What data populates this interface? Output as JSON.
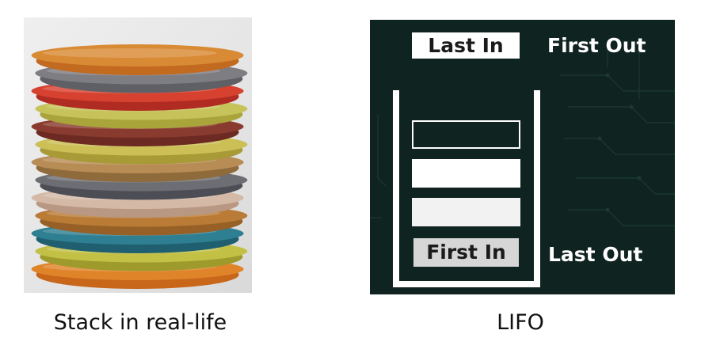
{
  "captions": {
    "left": "Stack in real-life",
    "right": "LIFO"
  },
  "lifo": {
    "top_box": "Last In",
    "top_right": "First Out",
    "bottom_box": "First In",
    "bottom_right": "Last Out"
  },
  "plates": [
    {
      "rim": "#d98a34",
      "body": "#c26a20"
    },
    {
      "rim": "#7d7d82",
      "body": "#5f5f66"
    },
    {
      "rim": "#d7412f",
      "body": "#b02c22"
    },
    {
      "rim": "#c6c35a",
      "body": "#a9a53b"
    },
    {
      "rim": "#8a3b2f",
      "body": "#6c2a22"
    },
    {
      "rim": "#cbbf55",
      "body": "#a89a36"
    },
    {
      "rim": "#b88c55",
      "body": "#8f6a3a"
    },
    {
      "rim": "#6d6e74",
      "body": "#4d4e55"
    },
    {
      "rim": "#d4b9a6",
      "body": "#b89783"
    },
    {
      "rim": "#b97b35",
      "body": "#966026"
    },
    {
      "rim": "#2f7f92",
      "body": "#1f5f70"
    },
    {
      "rim": "#c3c046",
      "body": "#9e9b2c"
    },
    {
      "rim": "#e0842a",
      "body": "#c8661a"
    }
  ],
  "colors": {
    "panel_bg": "#0f2420",
    "circuit": "#1c3a33"
  }
}
